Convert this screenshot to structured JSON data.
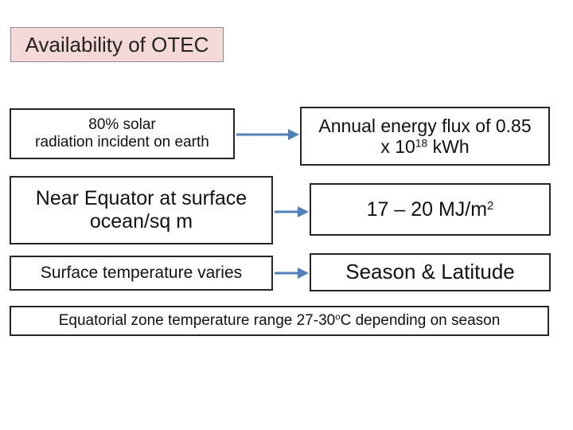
{
  "title": "Availability of OTEC",
  "rows": [
    {
      "left_lines": [
        "80% solar",
        "radiation incident on earth"
      ],
      "right_main": "Annual energy flux of 0.85",
      "right_line2_pre": "x 10",
      "right_line2_sup": "18",
      "right_line2_post": " kWh"
    },
    {
      "left_lines": [
        "Near Equator at surface",
        "ocean/sq m"
      ],
      "right_main": "17 – 20 MJ/m",
      "right_sup": "2"
    },
    {
      "left_lines": [
        "Surface temperature varies"
      ],
      "right_main": "Season & Latitude"
    }
  ],
  "bottom": {
    "pre": "Equatorial zone temperature range 27-30",
    "sup": "o",
    "post": "C depending on season"
  },
  "colors": {
    "title_fill": "#f4d9d7",
    "arrow": "#4f81bd",
    "box_border": "#262626"
  }
}
